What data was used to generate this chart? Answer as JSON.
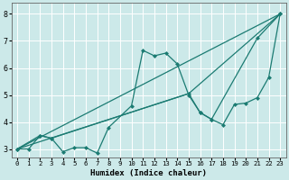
{
  "xlabel": "Humidex (Indice chaleur)",
  "xlim": [
    -0.5,
    23.5
  ],
  "ylim": [
    2.7,
    8.4
  ],
  "xticks": [
    0,
    1,
    2,
    3,
    4,
    5,
    6,
    7,
    8,
    9,
    10,
    11,
    12,
    13,
    14,
    15,
    16,
    17,
    18,
    19,
    20,
    21,
    22,
    23
  ],
  "yticks": [
    3,
    4,
    5,
    6,
    7,
    8
  ],
  "background_color": "#cce9e9",
  "grid_color": "#ffffff",
  "line_color": "#1b7b72",
  "line1": {
    "x": [
      0,
      1,
      2,
      3,
      4,
      5,
      6,
      7,
      8,
      10,
      11,
      12,
      13,
      14,
      15,
      16,
      17,
      21,
      23
    ],
    "y": [
      3.0,
      3.0,
      3.5,
      3.4,
      2.9,
      3.05,
      3.05,
      2.85,
      3.8,
      4.6,
      6.65,
      6.45,
      6.55,
      6.15,
      5.0,
      4.35,
      4.1,
      7.1,
      8.0
    ]
  },
  "line2": {
    "x": [
      0,
      23
    ],
    "y": [
      3.0,
      8.0
    ]
  },
  "line3": {
    "x": [
      0,
      15,
      23
    ],
    "y": [
      3.0,
      5.05,
      8.0
    ]
  },
  "line4": {
    "x": [
      0,
      2,
      3,
      15,
      16,
      17,
      18,
      19,
      20,
      21,
      22,
      23
    ],
    "y": [
      3.0,
      3.5,
      3.4,
      5.05,
      4.35,
      4.1,
      3.9,
      4.65,
      4.7,
      4.9,
      5.65,
      8.0
    ]
  }
}
